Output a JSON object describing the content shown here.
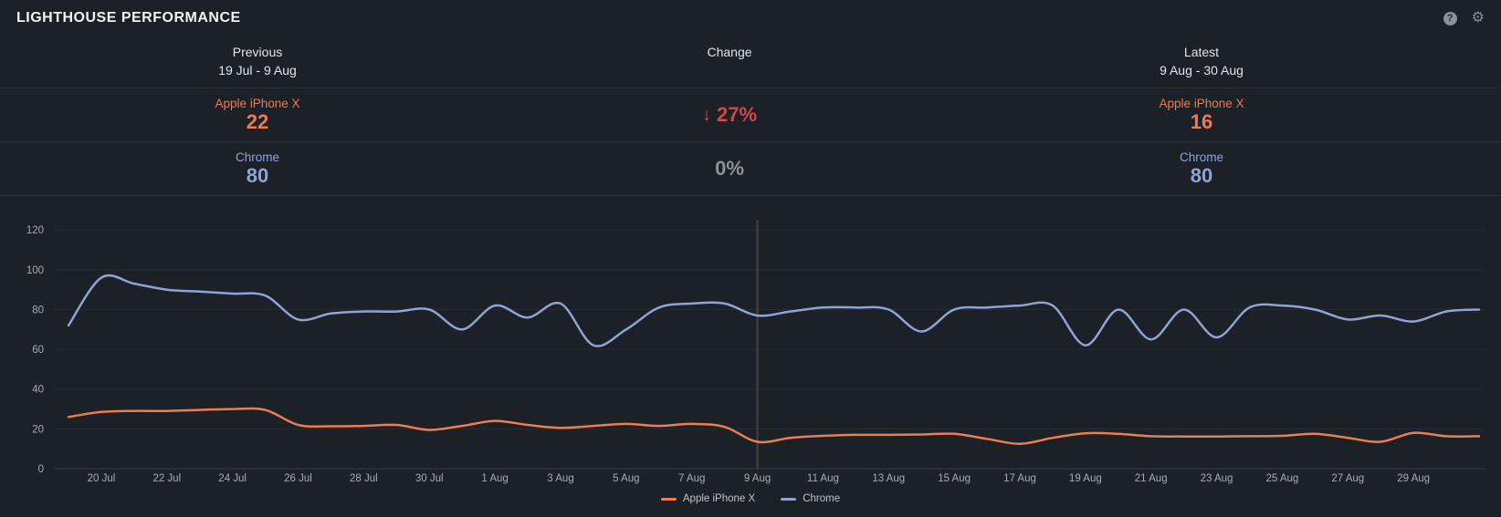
{
  "header": {
    "title": "LIGHTHOUSE PERFORMANCE",
    "help_icon": "?",
    "settings_icon": "⚙"
  },
  "comparison": {
    "columns": [
      {
        "label": "Previous",
        "range": "19 Jul - 9 Aug"
      },
      {
        "label": "Change",
        "range": ""
      },
      {
        "label": "Latest",
        "range": "9 Aug - 30 Aug"
      }
    ],
    "rows": [
      {
        "name": "Apple iPhone X",
        "previous": "22",
        "change_arrow": "↓",
        "change": "27%",
        "latest": "16",
        "color": "#ee7b4d",
        "change_color": "#d5454d"
      },
      {
        "name": "Chrome",
        "previous": "80",
        "change_arrow": "",
        "change": "0%",
        "latest": "80",
        "color": "#8ea3d8",
        "change_color": "#8f9294"
      }
    ]
  },
  "chart_data": {
    "type": "line",
    "x": [
      "19 Jul",
      "20 Jul",
      "21 Jul",
      "22 Jul",
      "23 Jul",
      "24 Jul",
      "25 Jul",
      "26 Jul",
      "27 Jul",
      "28 Jul",
      "29 Jul",
      "30 Jul",
      "31 Jul",
      "1 Aug",
      "2 Aug",
      "3 Aug",
      "4 Aug",
      "5 Aug",
      "6 Aug",
      "7 Aug",
      "8 Aug",
      "9 Aug",
      "10 Aug",
      "11 Aug",
      "12 Aug",
      "13 Aug",
      "14 Aug",
      "15 Aug",
      "16 Aug",
      "17 Aug",
      "18 Aug",
      "19 Aug",
      "20 Aug",
      "21 Aug",
      "22 Aug",
      "23 Aug",
      "24 Aug",
      "25 Aug",
      "26 Aug",
      "27 Aug",
      "28 Aug",
      "29 Aug",
      "30 Aug",
      "31 Aug"
    ],
    "series": [
      {
        "name": "Apple iPhone X",
        "color": "#ed7c4f",
        "values": [
          26,
          28.5,
          29,
          29,
          29.5,
          30,
          29.5,
          22,
          21.3,
          21.5,
          22,
          19.5,
          21.5,
          24,
          22,
          20.5,
          21.5,
          22.5,
          21.5,
          22.5,
          21,
          13.5,
          15.5,
          16.5,
          17,
          17,
          17.2,
          17.5,
          15,
          12.5,
          15.5,
          17.8,
          17.5,
          16.3,
          16.2,
          16.2,
          16.3,
          16.5,
          17.5,
          15.5,
          13.5,
          18,
          16.3,
          16.3
        ]
      },
      {
        "name": "Chrome",
        "color": "#8ea3d8",
        "values": [
          72,
          96,
          93,
          90,
          89,
          88,
          87,
          75,
          78,
          79,
          79,
          80,
          70,
          82,
          76,
          83,
          62,
          70,
          81,
          83,
          83,
          77,
          79,
          81,
          81,
          80,
          69,
          80,
          81,
          82,
          82,
          62,
          80,
          65,
          80,
          66,
          81,
          82,
          80,
          75,
          77,
          74,
          79,
          80
        ]
      }
    ],
    "yticks": [
      0,
      20,
      40,
      60,
      80,
      100,
      120
    ],
    "ylim": [
      0,
      120
    ],
    "xticks": [
      "20 Jul",
      "22 Jul",
      "24 Jul",
      "26 Jul",
      "28 Jul",
      "30 Jul",
      "1 Aug",
      "3 Aug",
      "5 Aug",
      "7 Aug",
      "9 Aug",
      "11 Aug",
      "13 Aug",
      "15 Aug",
      "17 Aug",
      "19 Aug",
      "21 Aug",
      "23 Aug",
      "25 Aug",
      "27 Aug",
      "29 Aug"
    ],
    "divider_at": "9 Aug",
    "grid": "horizontal",
    "legend_position": "bottom"
  },
  "colors": {
    "background": "#1b2126",
    "gridline": "rgba(255,255,255,0.05)",
    "zero_line": "rgba(255,255,255,0.12)",
    "divider": "#403d39",
    "tick_text": "#a9acaf"
  }
}
